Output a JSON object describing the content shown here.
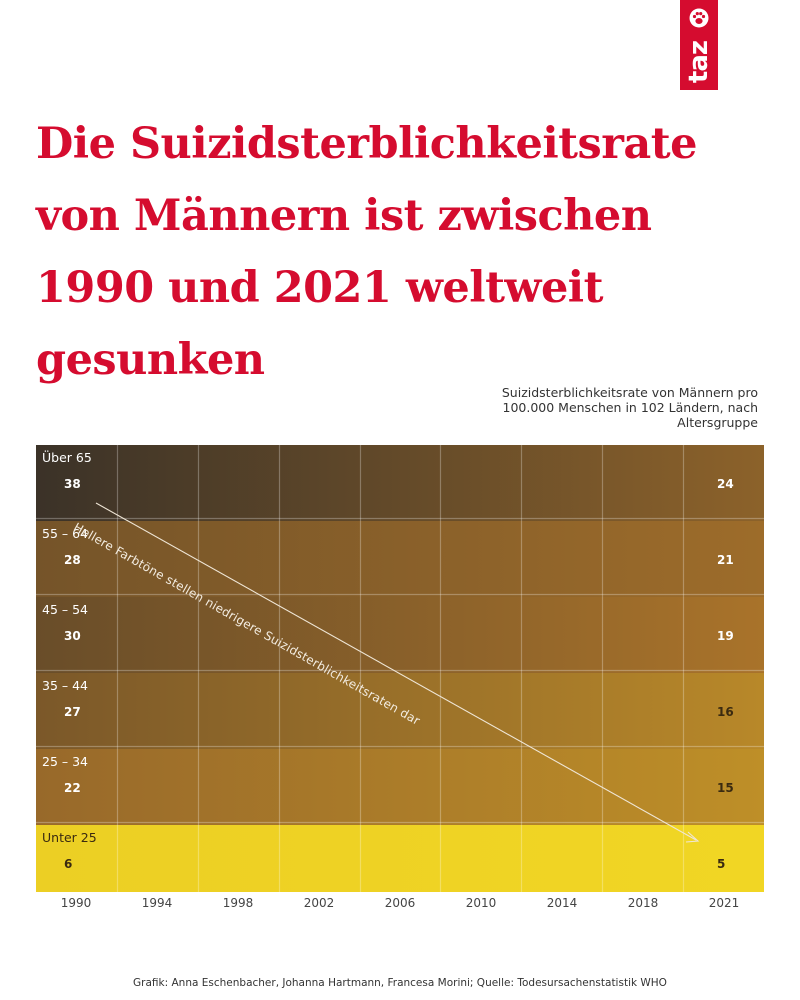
{
  "logo": {
    "text": "taz",
    "icon": "paw-icon",
    "background": "#d50c2f"
  },
  "headline": "Die Suizidsterblichkeitsrate von Männern ist zwischen 1990 und 2021 weltweit gesunken",
  "chart_data": {
    "type": "heatmap",
    "title": "Suizidsterblichkeitsrate von Männern pro 100.000 Menschen in 102 Ländern, nach Altersgruppe",
    "annotation": "Hellere Farbtöne stellen niedrigere Suizidsterblichkeitsraten dar",
    "x": [
      "1990",
      "1994",
      "1998",
      "2002",
      "2006",
      "2010",
      "2014",
      "2018",
      "2021"
    ],
    "series": [
      {
        "name": "Über 65",
        "start": 38,
        "end": 24
      },
      {
        "name": "55 – 64",
        "start": 28,
        "end": 21
      },
      {
        "name": "45 – 54",
        "start": 30,
        "end": 19
      },
      {
        "name": "35 – 44",
        "start": 27,
        "end": 16
      },
      {
        "name": "25  – 34",
        "start": 22,
        "end": 15
      },
      {
        "name": "Unter 25",
        "start": 6,
        "end": 5
      }
    ],
    "color_scale": {
      "high": "#2f2b28",
      "mid": "#a9732a",
      "low": "#f1d624"
    }
  },
  "credit": "Grafik: Anna Eschenbacher, Johanna Hartmann, Francesa Morini; Quelle: Todesursachenstatistik WHO",
  "colors": {
    "accent": "#d50c2f"
  }
}
